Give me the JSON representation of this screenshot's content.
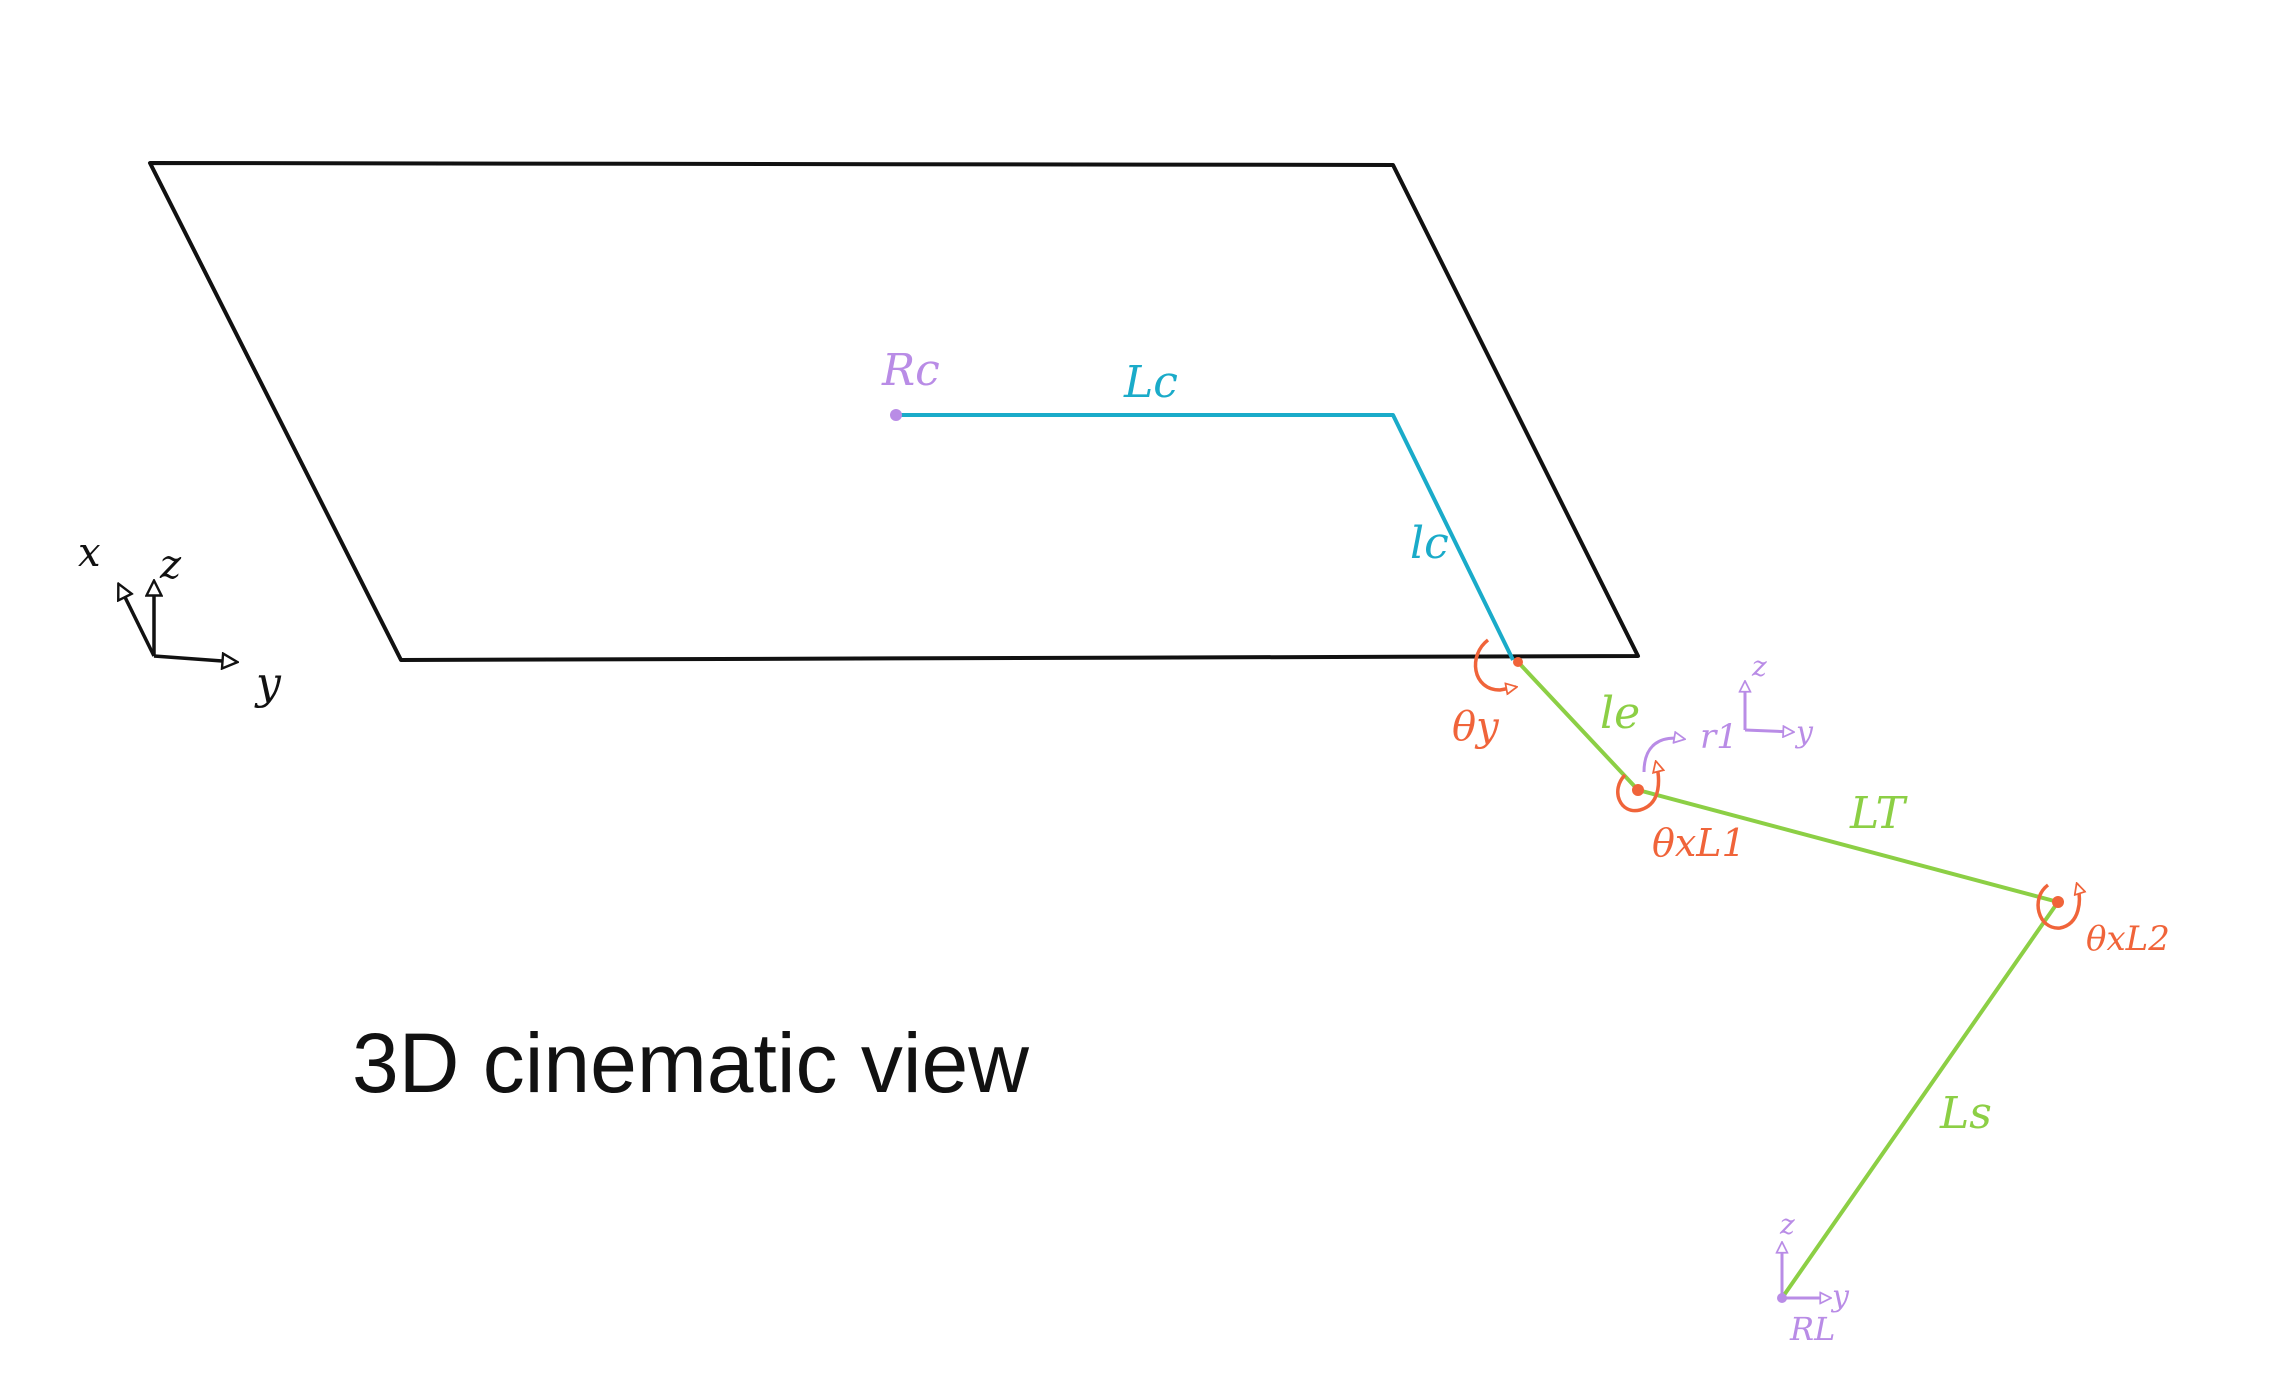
{
  "caption": "3D cinematic view",
  "colors": {
    "outline": "#111111",
    "cyan": "#1aabc9",
    "green": "#8ccf45",
    "orange": "#f0643a",
    "purple": "#b98ce6"
  },
  "labels": {
    "world_axis_x": "x",
    "world_axis_z": "z",
    "world_axis_y": "y",
    "point_Rc": "Rc",
    "segment_Lc": "Lc",
    "segment_lc": "lc",
    "joint_theta_y": "θy",
    "segment_le": "le",
    "frame_r1": "r1",
    "frame_r1_z": "z",
    "frame_r1_y": "y",
    "joint_theta_xL1": "θxL1",
    "segment_LT": "LT",
    "joint_theta_xL2": "θxL2",
    "segment_Ls": "Ls",
    "frame_RL_z": "z",
    "frame_RL_y": "y",
    "point_RL": "RL"
  }
}
